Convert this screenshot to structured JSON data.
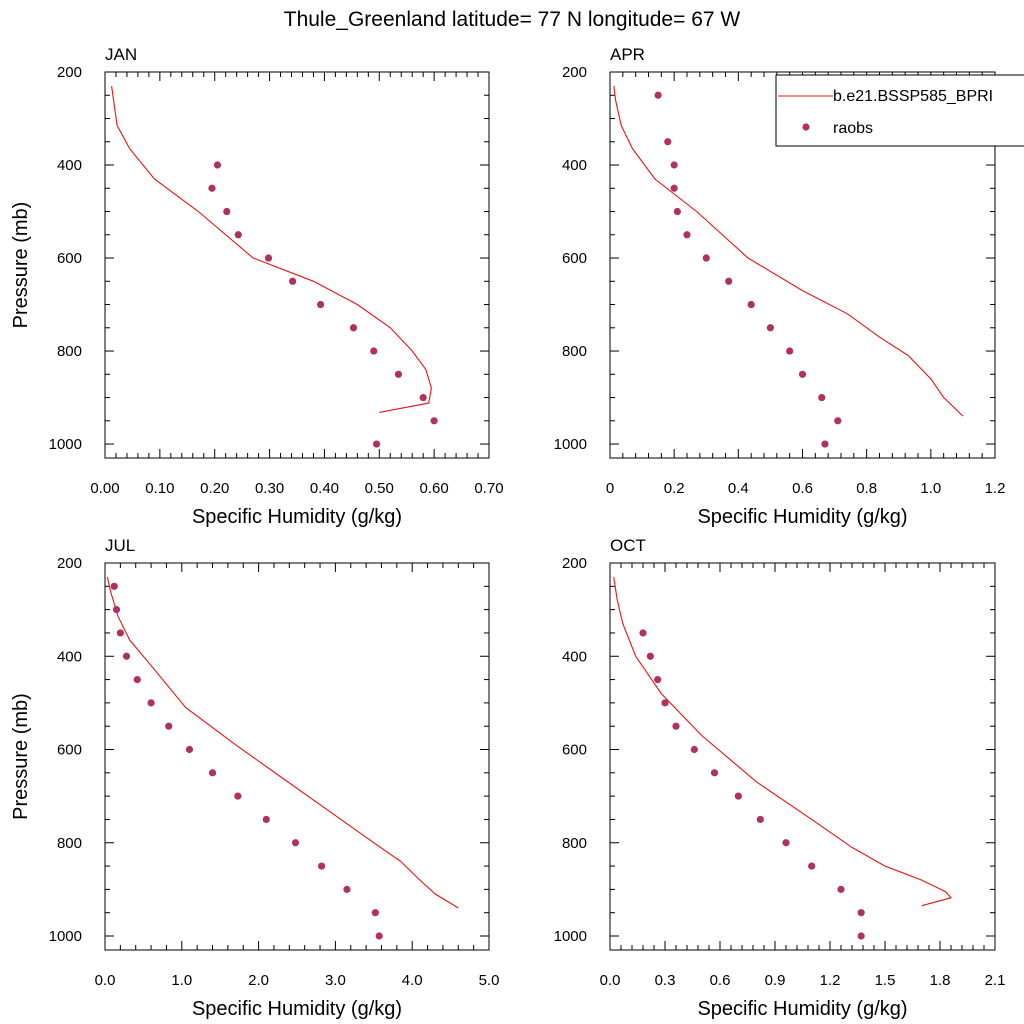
{
  "title": "Thule_Greenland  latitude= 77 N longitude= 67 W",
  "colors": {
    "model": "#ee1111",
    "obs": "#b03060"
  },
  "legend": {
    "placement": "top-right of APR panel",
    "model_label": "b.e21.BSSP585_BPRI",
    "obs_label": "raobs"
  },
  "chart_data": [
    {
      "type": "line",
      "label": "JAN",
      "xlabel": "Specific Humidity (g/kg)",
      "ylabel": "Pressure (mb)",
      "xlim": [
        0,
        0.7
      ],
      "ylim": [
        1030,
        200
      ],
      "xticks": [
        "0.00",
        "0.10",
        "0.20",
        "0.30",
        "0.40",
        "0.50",
        "0.60",
        "0.70"
      ],
      "yticks": [
        "200",
        "400",
        "600",
        "800",
        "1000"
      ],
      "model": {
        "x": [
          0.5,
          0.59,
          0.595,
          0.585,
          0.56,
          0.52,
          0.46,
          0.38,
          0.27,
          0.17,
          0.09,
          0.045,
          0.022,
          0.012
        ],
        "y": [
          932,
          912,
          880,
          840,
          800,
          750,
          700,
          650,
          600,
          500,
          430,
          365,
          315,
          230
        ]
      },
      "obs": {
        "x": [
          0.205,
          0.195,
          0.222,
          0.243,
          0.298,
          0.342,
          0.393,
          0.453,
          0.49,
          0.535,
          0.58,
          0.6,
          0.495
        ],
        "y": [
          400,
          450,
          500,
          550,
          600,
          650,
          700,
          750,
          800,
          850,
          900,
          950,
          1000
        ]
      }
    },
    {
      "type": "line",
      "label": "APR",
      "xlabel": "Specific Humidity (g/kg)",
      "ylabel": "",
      "xlim": [
        0,
        1.2
      ],
      "ylim": [
        1030,
        200
      ],
      "xticks": [
        "0",
        "0.2",
        "0.4",
        "0.6",
        "0.8",
        "1.0",
        "1.2"
      ],
      "yticks": [
        "200",
        "400",
        "600",
        "800",
        "1000"
      ],
      "model": {
        "x": [
          1.1,
          1.04,
          1.0,
          0.93,
          0.84,
          0.74,
          0.6,
          0.43,
          0.27,
          0.14,
          0.07,
          0.035,
          0.017,
          0.012
        ],
        "y": [
          940,
          900,
          860,
          810,
          770,
          720,
          670,
          600,
          500,
          430,
          365,
          315,
          260,
          230
        ]
      },
      "obs": {
        "x": [
          0.15,
          0.18,
          0.2,
          0.2,
          0.21,
          0.24,
          0.3,
          0.37,
          0.44,
          0.5,
          0.56,
          0.6,
          0.66,
          0.71,
          0.67
        ],
        "y": [
          250,
          350,
          400,
          450,
          500,
          550,
          600,
          650,
          700,
          750,
          800,
          850,
          900,
          950,
          1000
        ]
      }
    },
    {
      "type": "line",
      "label": "JUL",
      "xlabel": "Specific Humidity (g/kg)",
      "ylabel": "Pressure (mb)",
      "xlim": [
        0,
        5
      ],
      "ylim": [
        1030,
        200
      ],
      "xticks": [
        "0.0",
        "1.0",
        "2.0",
        "3.0",
        "4.0",
        "5.0"
      ],
      "yticks": [
        "200",
        "400",
        "600",
        "800",
        "1000"
      ],
      "model": {
        "x": [
          4.6,
          4.3,
          4.1,
          3.85,
          3.5,
          2.9,
          2.3,
          1.7,
          1.05,
          0.65,
          0.32,
          0.17,
          0.08,
          0.03
        ],
        "y": [
          940,
          910,
          880,
          840,
          800,
          730,
          660,
          590,
          510,
          430,
          365,
          315,
          265,
          230
        ]
      },
      "obs": {
        "x": [
          0.12,
          0.15,
          0.2,
          0.28,
          0.42,
          0.6,
          0.83,
          1.1,
          1.4,
          1.73,
          2.1,
          2.48,
          2.82,
          3.15,
          3.52,
          3.57
        ],
        "y": [
          250,
          300,
          350,
          400,
          450,
          500,
          550,
          600,
          650,
          700,
          750,
          800,
          850,
          900,
          950,
          1000
        ]
      }
    },
    {
      "type": "line",
      "label": "OCT",
      "xlabel": "Specific Humidity (g/kg)",
      "ylabel": "",
      "xlim": [
        0,
        2.1
      ],
      "ylim": [
        1030,
        200
      ],
      "xticks": [
        "0.0",
        "0.3",
        "0.6",
        "0.9",
        "1.2",
        "1.5",
        "1.8",
        "2.1"
      ],
      "yticks": [
        "200",
        "400",
        "600",
        "800",
        "1000"
      ],
      "model": {
        "x": [
          1.7,
          1.86,
          1.83,
          1.7,
          1.5,
          1.32,
          1.1,
          0.8,
          0.5,
          0.28,
          0.14,
          0.07,
          0.04,
          0.02
        ],
        "y": [
          935,
          918,
          905,
          880,
          850,
          810,
          750,
          670,
          570,
          480,
          400,
          330,
          280,
          230
        ]
      },
      "obs": {
        "x": [
          0.18,
          0.22,
          0.26,
          0.3,
          0.36,
          0.46,
          0.57,
          0.7,
          0.82,
          0.96,
          1.1,
          1.26,
          1.37,
          1.37
        ],
        "y": [
          350,
          400,
          450,
          500,
          550,
          600,
          650,
          700,
          750,
          800,
          850,
          900,
          950,
          1000
        ]
      }
    }
  ]
}
